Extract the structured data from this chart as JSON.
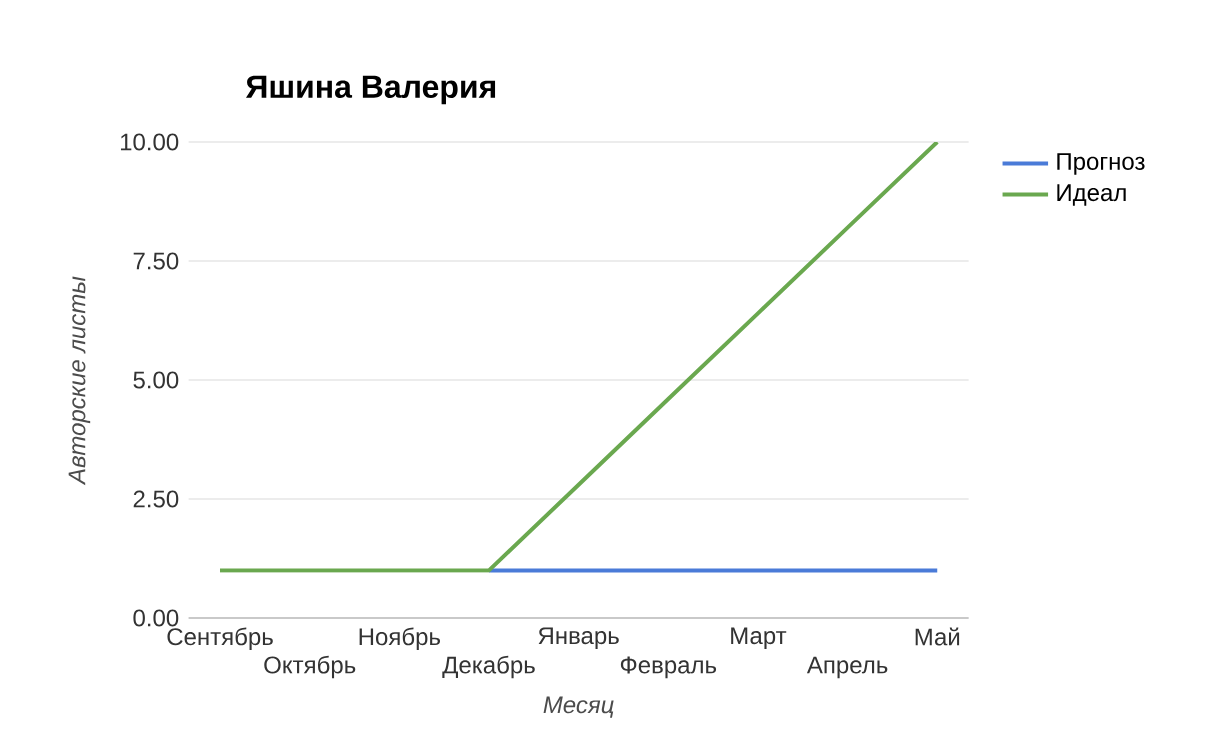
{
  "chart_data": {
    "type": "line",
    "title": "Яшина Валерия",
    "xlabel": "Месяц",
    "ylabel": "Авторские листы",
    "categories": [
      "Сентябрь",
      "Октябрь",
      "Ноябрь",
      "Декабрь",
      "Январь",
      "Февраль",
      "Март",
      "Апрель",
      "Май"
    ],
    "series": [
      {
        "name": "Прогноз",
        "color": "#4a7bd8",
        "values": [
          null,
          null,
          null,
          1,
          1,
          1,
          1,
          1,
          1
        ]
      },
      {
        "name": "Идеал",
        "color": "#6aa84f",
        "values": [
          1,
          1,
          1,
          1,
          2.8,
          4.6,
          6.4,
          8.2,
          10
        ]
      }
    ],
    "ylim": [
      0,
      10
    ],
    "yticks": [
      {
        "value": 0,
        "label": "0.00"
      },
      {
        "value": 2.5,
        "label": "2.50"
      },
      {
        "value": 5,
        "label": "5.00"
      },
      {
        "value": 7.5,
        "label": "7.50"
      },
      {
        "value": 10,
        "label": "10.00"
      }
    ],
    "grid": "y",
    "legend": "top right",
    "line_style": "solid",
    "marker": "none"
  }
}
